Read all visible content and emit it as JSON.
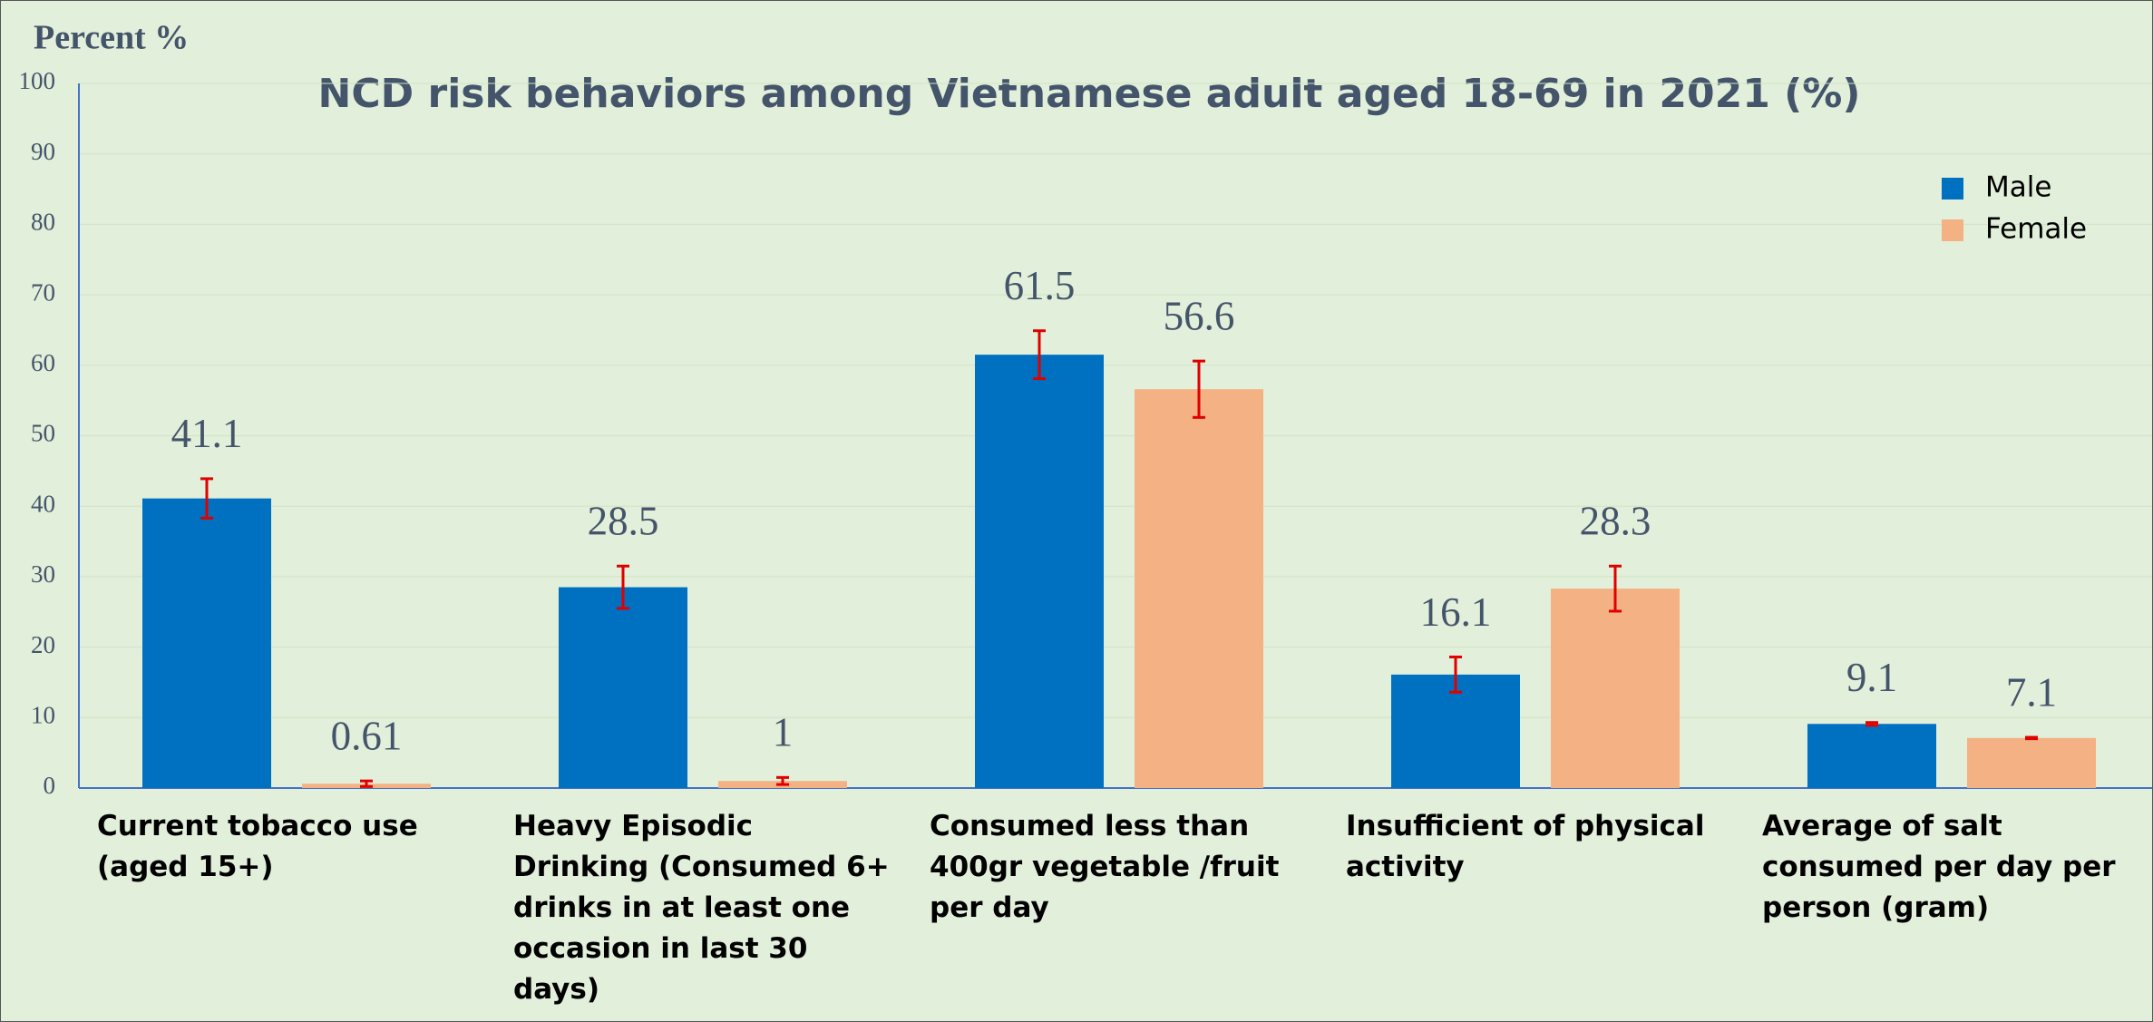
{
  "chart_data": {
    "type": "bar",
    "title": "NCD risk behaviors among Vietnamese adult aged 18-69 in 2021 (%)",
    "y_label": "Percent %",
    "categories": [
      "Current tobacco use (aged 15+)",
      "Heavy Episodic Drinking (Consumed 6+ drinks in at least one occasion in last 30 days)",
      "Consumed less than 400gr vegetable /fruit per day",
      "Insufficient of physical activity",
      "Average of salt consumed per day per person (gram)"
    ],
    "series": [
      {
        "name": "Male",
        "color": "#0070c0",
        "values": [
          41.1,
          28.5,
          61.5,
          16.1,
          9.1
        ],
        "errors": [
          2.8,
          3,
          3.4,
          2.5,
          0.2
        ]
      },
      {
        "name": "Female",
        "color": "#f4b183",
        "values": [
          0.61,
          1,
          56.6,
          28.3,
          7.1
        ],
        "errors": [
          0.4,
          0.5,
          4,
          3.2,
          0.1
        ]
      }
    ],
    "error_color": "#e00000",
    "ylim": [
      0,
      100
    ],
    "yticks": [
      0,
      10,
      20,
      30,
      40,
      50,
      60,
      70,
      80,
      90,
      100
    ],
    "grid": true,
    "legend": "upper right"
  }
}
